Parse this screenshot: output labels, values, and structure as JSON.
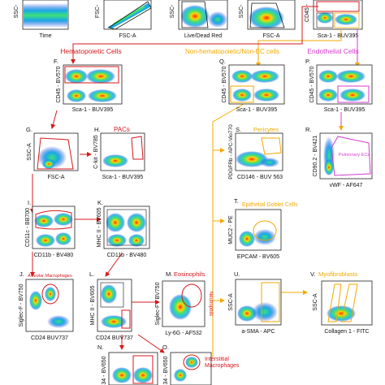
{
  "colors": {
    "hematopoietic": "#d7191c",
    "non_hematopoietic": "#f2a900",
    "endothelial": "#d63bd0",
    "gate": "#d7191c",
    "arrow_red": "#d7191c",
    "arrow_orange": "#f2a900",
    "text": "#111111"
  },
  "sections": {
    "hematopoietic": "Hematopoietic Cells",
    "non_hematopoietic": "Non-hematopoietic/Non-EC cells",
    "endothelial": "Endothelial Cells"
  },
  "top_strip": [
    {
      "letter": "",
      "xlabel": "Time",
      "ylabel": "SSC-"
    },
    {
      "letter": "",
      "xlabel": "FSC-A",
      "ylabel": "FSC-"
    },
    {
      "letter": "",
      "xlabel": "Live/Dead Red",
      "ylabel": "SSC-"
    },
    {
      "letter": "",
      "xlabel": "FSC-A",
      "ylabel": "SSC-"
    },
    {
      "letter": "",
      "xlabel": "Sca-1 - BUV395",
      "ylabel": "CD45 -"
    }
  ],
  "panels": {
    "F": {
      "letter": "F.",
      "xlabel": "Sca-1 - BUV395",
      "ylabel": "CD45 - BV570",
      "title": ""
    },
    "Q": {
      "letter": "Q.",
      "xlabel": "Sca-1 - BUV395",
      "ylabel": "CD45 - BV570",
      "title": ""
    },
    "P": {
      "letter": "P.",
      "xlabel": "Sca-1 - BUV395",
      "ylabel": "CD45 - BV570",
      "title": ""
    },
    "G": {
      "letter": "G.",
      "xlabel": "FSC-A",
      "ylabel": "SSC-A",
      "title": ""
    },
    "H": {
      "letter": "H.",
      "xlabel": "Sca-1 - BUV395",
      "ylabel": "C-kit - BV785",
      "title": "PACs"
    },
    "S": {
      "letter": "S.",
      "xlabel": "CD146 - BUV 563",
      "ylabel": "PDGFRb - APC-Vio770",
      "title": "Pericytes"
    },
    "R": {
      "letter": "R.",
      "xlabel": "vWF - AF647",
      "ylabel": "CD90.2 - BV421",
      "title": "",
      "gate_label": "Pulmonary ECs"
    },
    "I": {
      "letter": "I.",
      "xlabel": "CD11b - BV480",
      "ylabel": "CD11c - BB700",
      "title": ""
    },
    "K": {
      "letter": "K.",
      "xlabel": "CD11b - BV480",
      "ylabel": "MHC II - BV605",
      "title": ""
    },
    "T": {
      "letter": "T.",
      "xlabel": "EPCAM - BV605",
      "ylabel": "MUC2 - PE",
      "title": "Epithelial Goblet Cells"
    },
    "J": {
      "letter": "J.",
      "xlabel": "CD24 BUV737",
      "ylabel": "Siglec-F - BV750",
      "title": "",
      "gate_label": "Alveolar Macrophages"
    },
    "L": {
      "letter": "L.",
      "xlabel": "CD24 BUV737",
      "ylabel": "MHC II - BV605",
      "title": ""
    },
    "M": {
      "letter": "M.",
      "xlabel": "Ly-6G - AF532",
      "ylabel": "Siglec-F - BV750",
      "title": "Eosinophils",
      "side_label": "Neutrophils"
    },
    "U": {
      "letter": "U.",
      "xlabel": "a-SMA - APC",
      "ylabel": "SSC-A",
      "title": ""
    },
    "V": {
      "letter": "V.",
      "xlabel": "Collagen 1 - FITC",
      "ylabel": "SSC-A",
      "title": "Myofibroblasts"
    },
    "N": {
      "letter": "N.",
      "xlabel": "",
      "ylabel": "34 - BV650",
      "title": ""
    },
    "O": {
      "letter": "O.",
      "xlabel": "",
      "ylabel": "34 - BV650",
      "title": "",
      "gate_label": "Interstitial Macrophages"
    }
  }
}
